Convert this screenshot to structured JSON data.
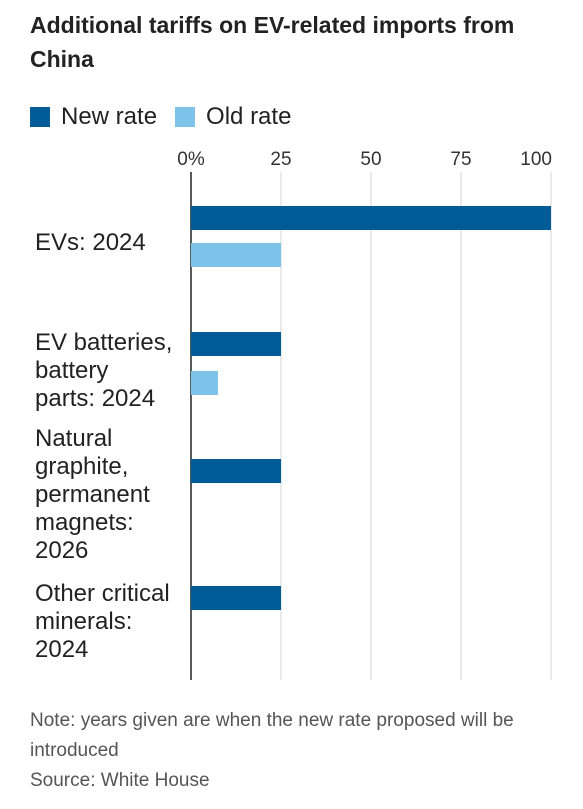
{
  "title": "Additional tariffs on EV-related imports from China",
  "legend": [
    {
      "label": "New rate",
      "color": "#005b96"
    },
    {
      "label": "Old rate",
      "color": "#7ec3ea"
    }
  ],
  "note": "Note: years given are when the new rate proposed will be introduced",
  "source": "Source: White House",
  "chart_data": {
    "type": "bar",
    "orientation": "horizontal",
    "title": "Additional tariffs on EV-related imports from China",
    "xlim": [
      0,
      100
    ],
    "xticks": [
      0,
      25,
      50,
      75,
      100
    ],
    "xtick_labels": [
      "0%",
      "25",
      "50",
      "75",
      "100"
    ],
    "grid": true,
    "legend_position": "top-left",
    "categories": [
      [
        "EVs: 2024"
      ],
      [
        "EV batteries,",
        "battery",
        "parts: 2024"
      ],
      [
        "Natural",
        "graphite,",
        "permanent",
        "magnets:",
        "2026"
      ],
      [
        "Other critical",
        "minerals:",
        "2024"
      ]
    ],
    "series": [
      {
        "name": "New rate",
        "color": "#005b96",
        "values": [
          100,
          25,
          25,
          25
        ]
      },
      {
        "name": "Old rate",
        "color": "#7ec3ea",
        "values": [
          25,
          7.5,
          null,
          null
        ]
      }
    ]
  }
}
